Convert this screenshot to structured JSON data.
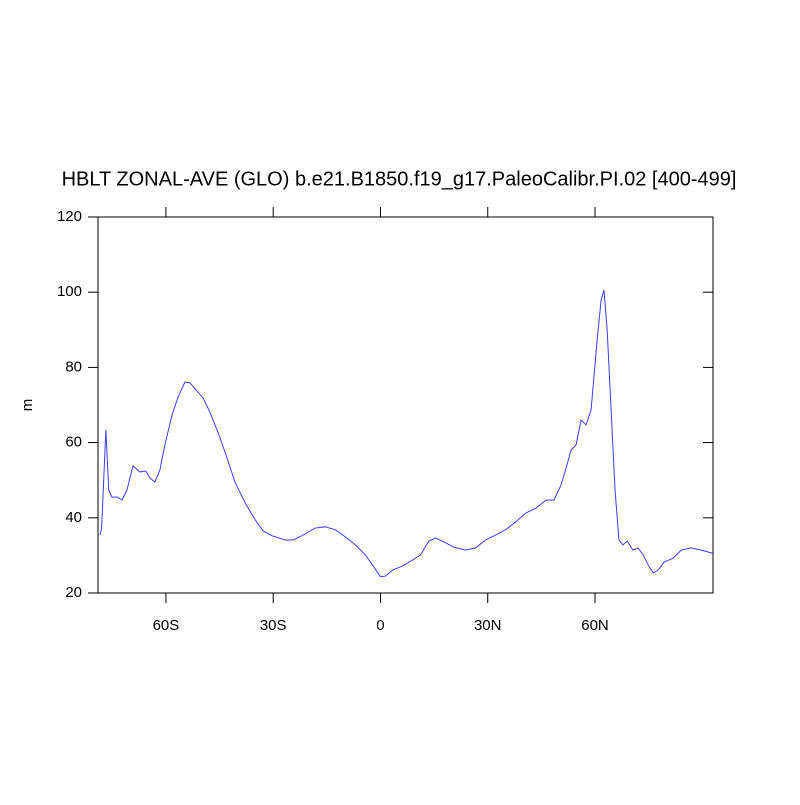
{
  "chart_data": {
    "type": "line",
    "title": "HBLT ZONAL-AVE (GLO) b.e21.B1850.f19_g17.PaleoCalibr.PI.02 [400-499]",
    "y_label": "m",
    "x": [
      -78.5,
      -78,
      -76.8,
      -76,
      -75.1,
      -73.5,
      -72.3,
      -70.9,
      -69.2,
      -67.3,
      -65.6,
      -64.5,
      -63.1,
      -61.7,
      -60.3,
      -58.3,
      -56.6,
      -54.7,
      -53.3,
      -51.6,
      -49.6,
      -47.7,
      -45.4,
      -43.2,
      -40.7,
      -37.8,
      -35,
      -32.8,
      -30.3,
      -26.6,
      -24.4,
      -21.6,
      -18.2,
      -15.4,
      -12.6,
      -9.8,
      -7,
      -4.2,
      -2.2,
      0,
      1.4,
      3.4,
      6.2,
      9,
      11.2,
      13.5,
      15.4,
      17.7,
      20.5,
      23.8,
      26.6,
      29.4,
      32.2,
      35,
      37.8,
      40.7,
      43.5,
      46.3,
      48.5,
      50.5,
      51.9,
      53.3,
      54.7,
      56.1,
      57.5,
      58.9,
      60.6,
      61.7,
      62.5,
      63.4,
      64.5,
      65.6,
      66.7,
      67.8,
      69,
      70.6,
      72,
      73.5,
      74.9,
      76.3,
      77.7,
      79.3,
      81.9,
      84.1,
      86.9,
      89.7,
      92.8
    ],
    "series": [
      {
        "color": "#3c3cff",
        "values": [
          35.4,
          37,
          63.4,
          47.4,
          45.5,
          45.5,
          44.7,
          47.4,
          53.8,
          52.2,
          52.4,
          50.6,
          49.5,
          52.7,
          59.4,
          67.3,
          72.1,
          76.1,
          75.9,
          74,
          71.9,
          68.1,
          62.6,
          56.7,
          49.5,
          43.9,
          39.4,
          36.5,
          35.2,
          34.1,
          34.1,
          35.4,
          37.3,
          37.6,
          36.8,
          34.9,
          32.8,
          30.1,
          27.4,
          24.3,
          24.5,
          26.1,
          27.2,
          28.8,
          30.1,
          33.8,
          34.6,
          33.6,
          32.2,
          31.4,
          32,
          34.1,
          35.4,
          36.8,
          38.9,
          41.3,
          42.6,
          44.7,
          44.7,
          48.7,
          53.2,
          58,
          59.4,
          66,
          64.7,
          68.7,
          87.3,
          97.9,
          100.6,
          90,
          68.7,
          47.4,
          34.1,
          32.8,
          33.8,
          31.4,
          32,
          30.1,
          27.4,
          25.3,
          26.1,
          28.2,
          29.3,
          31.4,
          32,
          31.4,
          30.6
        ]
      }
    ],
    "xlim": [
      -79,
      93
    ],
    "xticks": [
      {
        "value": -60,
        "label": "60S"
      },
      {
        "value": -30,
        "label": "30S"
      },
      0,
      {
        "value": 30,
        "label": "30N"
      },
      {
        "value": 60,
        "label": "60N"
      }
    ],
    "ylim": [
      20,
      120
    ],
    "yticks": [
      20,
      40,
      60,
      80,
      100,
      120
    ]
  }
}
